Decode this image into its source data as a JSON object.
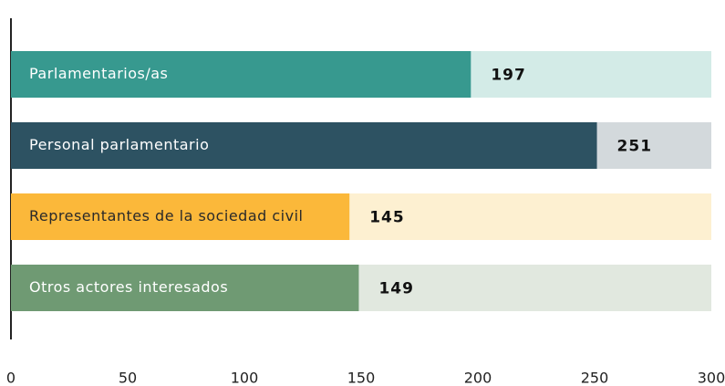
{
  "chart_data": {
    "type": "bar",
    "orientation": "horizontal",
    "categories": [
      "Parlamentarios/as",
      "Personal parlamentario",
      "Representantes de la sociedad civil",
      "Otros actores interesados"
    ],
    "values": [
      197,
      251,
      145,
      149
    ],
    "colors": [
      "#37998f",
      "#2d5262",
      "#fbb83a",
      "#6f9a73"
    ],
    "background_colors": [
      "#d3ebe7",
      "#d3d9dc",
      "#fdf0d1",
      "#e1e8df"
    ],
    "label_colors": [
      "#ffffff",
      "#ffffff",
      "#2a2a2a",
      "#ffffff"
    ],
    "xlim": [
      0,
      300
    ],
    "xticks": [
      0,
      50,
      100,
      150,
      200,
      250,
      300
    ]
  }
}
